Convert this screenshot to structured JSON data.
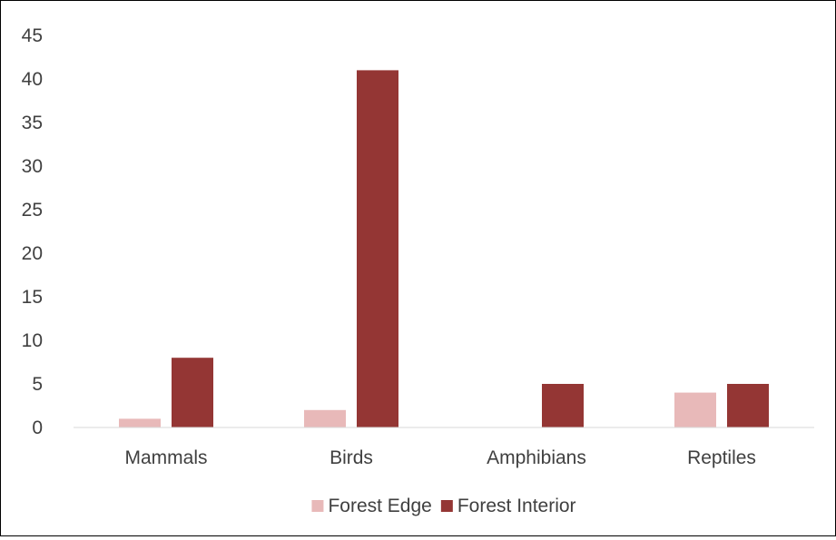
{
  "chart_data": {
    "type": "bar",
    "categories": [
      "Mammals",
      "Birds",
      "Amphibians",
      "Reptiles"
    ],
    "series": [
      {
        "name": "Forest Edge",
        "values": [
          1,
          2,
          0,
          4
        ],
        "color": "#e8b9b9"
      },
      {
        "name": "Forest Interior",
        "values": [
          8,
          41,
          5,
          5
        ],
        "color": "#943634"
      }
    ],
    "y_ticks": [
      "0",
      "5",
      "10",
      "15",
      "20",
      "25",
      "30",
      "35",
      "40",
      "45"
    ],
    "ylim": [
      0,
      45
    ],
    "grid": false,
    "legend_position": "bottom"
  }
}
